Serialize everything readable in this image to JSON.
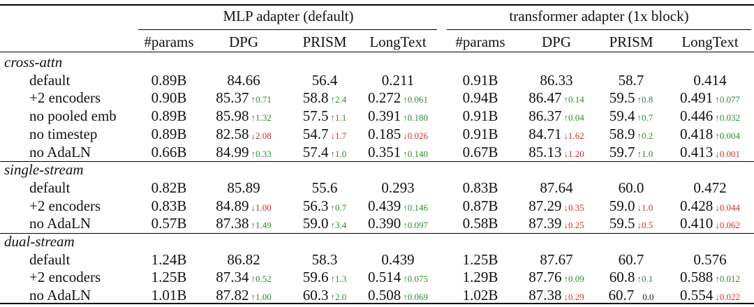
{
  "groups": [
    "MLP adapter (default)",
    "transformer adapter (1x block)"
  ],
  "columns": [
    "#params",
    "DPG",
    "PRISM",
    "LongText",
    "#params",
    "DPG",
    "PRISM",
    "LongText"
  ],
  "colors": {
    "up": "#2e8b2e",
    "down": "#d0302a"
  },
  "sections": [
    {
      "name": "cross-attn",
      "rows": [
        {
          "label": "default",
          "cells": [
            {
              "v": "0.89B"
            },
            {
              "v": "84.66"
            },
            {
              "v": "56.4"
            },
            {
              "v": "0.211"
            },
            {
              "v": "0.91B"
            },
            {
              "v": "86.33"
            },
            {
              "v": "58.7"
            },
            {
              "v": "0.414"
            }
          ]
        },
        {
          "label": "+2 encoders",
          "cells": [
            {
              "v": "0.90B"
            },
            {
              "v": "85.37",
              "d": "↑0.71",
              "t": "up"
            },
            {
              "v": "58.8",
              "d": "↑2.4",
              "t": "up"
            },
            {
              "v": "0.272",
              "d": "↑0.061",
              "t": "up"
            },
            {
              "v": "0.94B"
            },
            {
              "v": "86.47",
              "d": "↑0.14",
              "t": "up"
            },
            {
              "v": "59.5",
              "d": "↑0.8",
              "t": "up"
            },
            {
              "v": "0.491",
              "d": "↑0.077",
              "t": "up"
            }
          ]
        },
        {
          "label": "no pooled emb",
          "cells": [
            {
              "v": "0.89B"
            },
            {
              "v": "85.98",
              "d": "↑1.32",
              "t": "up"
            },
            {
              "v": "57.5",
              "d": "↑1.1",
              "t": "up"
            },
            {
              "v": "0.391",
              "d": "↑0.180",
              "t": "up"
            },
            {
              "v": "0.91B"
            },
            {
              "v": "86.37",
              "d": "↑0.04",
              "t": "up"
            },
            {
              "v": "59.4",
              "d": "↑0.7",
              "t": "up"
            },
            {
              "v": "0.446",
              "d": "↑0.032",
              "t": "up"
            }
          ]
        },
        {
          "label": "no timestep",
          "cells": [
            {
              "v": "0.89B"
            },
            {
              "v": "82.58",
              "d": "↓2.08",
              "t": "down"
            },
            {
              "v": "54.7",
              "d": "↓1.7",
              "t": "down"
            },
            {
              "v": "0.185",
              "d": "↓0.026",
              "t": "down"
            },
            {
              "v": "0.91B"
            },
            {
              "v": "84.71",
              "d": "↓1.62",
              "t": "down"
            },
            {
              "v": "58.9",
              "d": "↑0.2",
              "t": "up"
            },
            {
              "v": "0.418",
              "d": "↑0.004",
              "t": "up"
            }
          ]
        },
        {
          "label": "no AdaLN",
          "cells": [
            {
              "v": "0.66B"
            },
            {
              "v": "84.99",
              "d": "↑0.33",
              "t": "up"
            },
            {
              "v": "57.4",
              "d": "↑1.0",
              "t": "up"
            },
            {
              "v": "0.351",
              "d": "↑0.140",
              "t": "up"
            },
            {
              "v": "0.67B"
            },
            {
              "v": "85.13",
              "d": "↓1.20",
              "t": "down"
            },
            {
              "v": "59.7",
              "d": "↑1.0",
              "t": "up"
            },
            {
              "v": "0.413",
              "d": "↓0.001",
              "t": "down"
            }
          ]
        }
      ]
    },
    {
      "name": "single-stream",
      "rows": [
        {
          "label": "default",
          "cells": [
            {
              "v": "0.82B"
            },
            {
              "v": "85.89"
            },
            {
              "v": "55.6"
            },
            {
              "v": "0.293"
            },
            {
              "v": "0.83B"
            },
            {
              "v": "87.64"
            },
            {
              "v": "60.0"
            },
            {
              "v": "0.472"
            }
          ]
        },
        {
          "label": "+2 encoders",
          "cells": [
            {
              "v": "0.83B"
            },
            {
              "v": "84.89",
              "d": "↓1.00",
              "t": "down"
            },
            {
              "v": "56.3",
              "d": "↑0.7",
              "t": "up"
            },
            {
              "v": "0.439",
              "d": "↑0.146",
              "t": "up"
            },
            {
              "v": "0.87B"
            },
            {
              "v": "87.29",
              "d": "↓0.35",
              "t": "down"
            },
            {
              "v": "59.0",
              "d": "↓1.0",
              "t": "down"
            },
            {
              "v": "0.428",
              "d": "↓0.044",
              "t": "down"
            }
          ]
        },
        {
          "label": "no AdaLN",
          "cells": [
            {
              "v": "0.57B"
            },
            {
              "v": "87.38",
              "d": "↑1.49",
              "t": "up"
            },
            {
              "v": "59.0",
              "d": "↑3.4",
              "t": "up"
            },
            {
              "v": "0.390",
              "d": "↑0.097",
              "t": "up"
            },
            {
              "v": "0.58B"
            },
            {
              "v": "87.39",
              "d": "↓0.25",
              "t": "down"
            },
            {
              "v": "59.5",
              "d": "↓0.5",
              "t": "down"
            },
            {
              "v": "0.410",
              "d": "↓0.062",
              "t": "down"
            }
          ]
        }
      ]
    },
    {
      "name": "dual-stream",
      "rows": [
        {
          "label": "default",
          "cells": [
            {
              "v": "1.24B"
            },
            {
              "v": "86.82"
            },
            {
              "v": "58.3"
            },
            {
              "v": "0.439"
            },
            {
              "v": "1.25B"
            },
            {
              "v": "87.67"
            },
            {
              "v": "60.7"
            },
            {
              "v": "0.576"
            }
          ]
        },
        {
          "label": "+2 encoders",
          "cells": [
            {
              "v": "1.25B"
            },
            {
              "v": "87.34",
              "d": "↑0.52",
              "t": "up"
            },
            {
              "v": "59.6",
              "d": "↑1.3",
              "t": "up"
            },
            {
              "v": "0.514",
              "d": "↑0.075",
              "t": "up"
            },
            {
              "v": "1.29B"
            },
            {
              "v": "87.76",
              "d": "↑0.09",
              "t": "up"
            },
            {
              "v": "60.8",
              "d": "↑0.1",
              "t": "up"
            },
            {
              "v": "0.588",
              "d": "↑0.012",
              "t": "up"
            }
          ]
        },
        {
          "label": "no AdaLN",
          "cells": [
            {
              "v": "1.01B"
            },
            {
              "v": "87.82",
              "d": "↑1.00",
              "t": "up"
            },
            {
              "v": "60.3",
              "d": "↑2.0",
              "t": "up"
            },
            {
              "v": "0.508",
              "d": "↑0.069",
              "t": "up"
            },
            {
              "v": "1.02B"
            },
            {
              "v": "87.38",
              "d": "↓0.29",
              "t": "down"
            },
            {
              "v": "60.7",
              "d": "0.0",
              "t": "zero"
            },
            {
              "v": "0.554",
              "d": "↓0.022",
              "t": "down"
            }
          ]
        }
      ]
    }
  ]
}
